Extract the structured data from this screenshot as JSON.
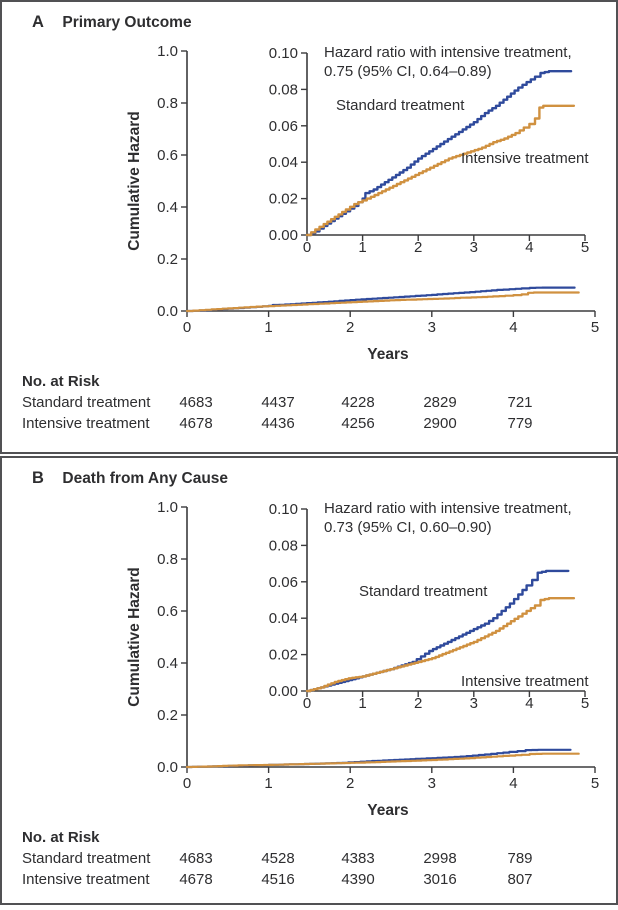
{
  "figure": {
    "border_color": "#515154",
    "axis_color": "#3b3b3d",
    "text_color": "#2e2e30",
    "accent_blue": "#2f4a9c",
    "accent_orange": "#d09140"
  },
  "panels": [
    {
      "letter": "A",
      "title": "Primary Outcome",
      "ylabel": "Cumulative Hazard",
      "xlabel": "Years",
      "hazard_note_line1": "Hazard ratio with intensive treatment,",
      "hazard_note_line2": "0.75 (95% CI, 0.64–0.89)",
      "series_label_standard": "Standard treatment",
      "series_label_intensive": "Intensive treatment",
      "risk_table": {
        "title": "No. at Risk",
        "rows": [
          {
            "label": "Standard treatment",
            "values": [
              "4683",
              "4437",
              "4228",
              "2829",
              "721"
            ]
          },
          {
            "label": "Intensive treatment",
            "values": [
              "4678",
              "4436",
              "4256",
              "2900",
              "779"
            ]
          }
        ]
      }
    },
    {
      "letter": "B",
      "title": "Death from Any Cause",
      "ylabel": "Cumulative Hazard",
      "xlabel": "Years",
      "hazard_note_line1": "Hazard ratio with intensive treatment,",
      "hazard_note_line2": "0.73 (95% CI, 0.60–0.90)",
      "series_label_standard": "Standard treatment",
      "series_label_intensive": "Intensive treatment",
      "risk_table": {
        "title": "No. at Risk",
        "rows": [
          {
            "label": "Standard treatment",
            "values": [
              "4683",
              "4528",
              "4383",
              "2998",
              "789"
            ]
          },
          {
            "label": "Intensive treatment",
            "values": [
              "4678",
              "4516",
              "4390",
              "3016",
              "807"
            ]
          }
        ]
      }
    }
  ],
  "chart_data": [
    {
      "panel": "A",
      "type": "line",
      "title": "Primary Outcome",
      "xlabel": "Years",
      "ylabel": "Cumulative Hazard",
      "xlim": [
        0,
        5
      ],
      "xticks": [
        "0",
        "1",
        "2",
        "3",
        "4",
        "5"
      ],
      "main_ylim": [
        0,
        1.0
      ],
      "main_yticks": [
        "0.0",
        "0.2",
        "0.4",
        "0.6",
        "0.8",
        "1.0"
      ],
      "inset_ylim": [
        0,
        0.1
      ],
      "inset_yticks": [
        "0.00",
        "0.02",
        "0.04",
        "0.06",
        "0.08",
        "0.10"
      ],
      "annotation": "Hazard ratio with intensive treatment, 0.75 (95% CI, 0.64–0.89)",
      "series": [
        {
          "name": "Standard treatment",
          "color": "#2f4a9c",
          "points": [
            [
              0,
              0
            ],
            [
              0.15,
              0.002
            ],
            [
              0.3,
              0.005
            ],
            [
              0.5,
              0.009
            ],
            [
              0.7,
              0.013
            ],
            [
              0.85,
              0.016
            ],
            [
              1.0,
              0.02
            ],
            [
              1.05,
              0.023
            ],
            [
              1.2,
              0.025
            ],
            [
              1.4,
              0.029
            ],
            [
              1.6,
              0.033
            ],
            [
              1.8,
              0.037
            ],
            [
              2.0,
              0.042
            ],
            [
              2.2,
              0.046
            ],
            [
              2.4,
              0.05
            ],
            [
              2.6,
              0.054
            ],
            [
              2.8,
              0.058
            ],
            [
              3.0,
              0.062
            ],
            [
              3.2,
              0.067
            ],
            [
              3.4,
              0.071
            ],
            [
              3.6,
              0.076
            ],
            [
              3.8,
              0.081
            ],
            [
              3.95,
              0.084
            ],
            [
              4.1,
              0.087
            ],
            [
              4.2,
              0.089
            ],
            [
              4.35,
              0.09
            ],
            [
              4.75,
              0.09
            ]
          ]
        },
        {
          "name": "Intensive treatment",
          "color": "#d09140",
          "points": [
            [
              0,
              0
            ],
            [
              0.15,
              0.003
            ],
            [
              0.3,
              0.006
            ],
            [
              0.5,
              0.01
            ],
            [
              0.7,
              0.014
            ],
            [
              0.85,
              0.017
            ],
            [
              1.0,
              0.019
            ],
            [
              1.15,
              0.021
            ],
            [
              1.35,
              0.024
            ],
            [
              1.55,
              0.027
            ],
            [
              1.75,
              0.03
            ],
            [
              1.95,
              0.033
            ],
            [
              2.15,
              0.036
            ],
            [
              2.35,
              0.039
            ],
            [
              2.55,
              0.042
            ],
            [
              2.75,
              0.044
            ],
            [
              2.95,
              0.046
            ],
            [
              3.15,
              0.048
            ],
            [
              3.35,
              0.051
            ],
            [
              3.55,
              0.053
            ],
            [
              3.75,
              0.056
            ],
            [
              3.9,
              0.059
            ],
            [
              4.0,
              0.061
            ],
            [
              4.1,
              0.064
            ],
            [
              4.18,
              0.07
            ],
            [
              4.25,
              0.071
            ],
            [
              4.8,
              0.071
            ]
          ]
        }
      ]
    },
    {
      "panel": "B",
      "type": "line",
      "title": "Death from Any Cause",
      "xlabel": "Years",
      "ylabel": "Cumulative Hazard",
      "xlim": [
        0,
        5
      ],
      "xticks": [
        "0",
        "1",
        "2",
        "3",
        "4",
        "5"
      ],
      "main_ylim": [
        0,
        1.0
      ],
      "main_yticks": [
        "0.0",
        "0.2",
        "0.4",
        "0.6",
        "0.8",
        "1.0"
      ],
      "inset_ylim": [
        0,
        0.1
      ],
      "inset_yticks": [
        "0.00",
        "0.02",
        "0.04",
        "0.06",
        "0.08",
        "0.10"
      ],
      "annotation": "Hazard ratio with intensive treatment, 0.73 (95% CI, 0.60–0.90)",
      "series": [
        {
          "name": "Standard treatment",
          "color": "#2f4a9c",
          "points": [
            [
              0,
              0
            ],
            [
              0.25,
              0.002
            ],
            [
              0.5,
              0.004
            ],
            [
              0.75,
              0.006
            ],
            [
              1.0,
              0.008
            ],
            [
              1.25,
              0.01
            ],
            [
              1.5,
              0.012
            ],
            [
              1.7,
              0.014
            ],
            [
              1.9,
              0.016
            ],
            [
              2.05,
              0.019
            ],
            [
              2.2,
              0.022
            ],
            [
              2.4,
              0.025
            ],
            [
              2.6,
              0.028
            ],
            [
              2.8,
              0.031
            ],
            [
              3.0,
              0.034
            ],
            [
              3.2,
              0.037
            ],
            [
              3.35,
              0.04
            ],
            [
              3.5,
              0.044
            ],
            [
              3.65,
              0.048
            ],
            [
              3.8,
              0.053
            ],
            [
              3.95,
              0.058
            ],
            [
              4.05,
              0.061
            ],
            [
              4.15,
              0.065
            ],
            [
              4.3,
              0.066
            ],
            [
              4.7,
              0.066
            ]
          ]
        },
        {
          "name": "Intensive treatment",
          "color": "#d09140",
          "points": [
            [
              0,
              0
            ],
            [
              0.25,
              0.002
            ],
            [
              0.5,
              0.005
            ],
            [
              0.75,
              0.007
            ],
            [
              1.0,
              0.008
            ],
            [
              1.25,
              0.01
            ],
            [
              1.5,
              0.012
            ],
            [
              1.75,
              0.014
            ],
            [
              2.0,
              0.016
            ],
            [
              2.25,
              0.018
            ],
            [
              2.5,
              0.021
            ],
            [
              2.75,
              0.024
            ],
            [
              3.0,
              0.027
            ],
            [
              3.2,
              0.03
            ],
            [
              3.4,
              0.033
            ],
            [
              3.6,
              0.037
            ],
            [
              3.8,
              0.041
            ],
            [
              3.95,
              0.044
            ],
            [
              4.1,
              0.047
            ],
            [
              4.2,
              0.05
            ],
            [
              4.35,
              0.051
            ],
            [
              4.8,
              0.051
            ]
          ]
        }
      ]
    }
  ]
}
